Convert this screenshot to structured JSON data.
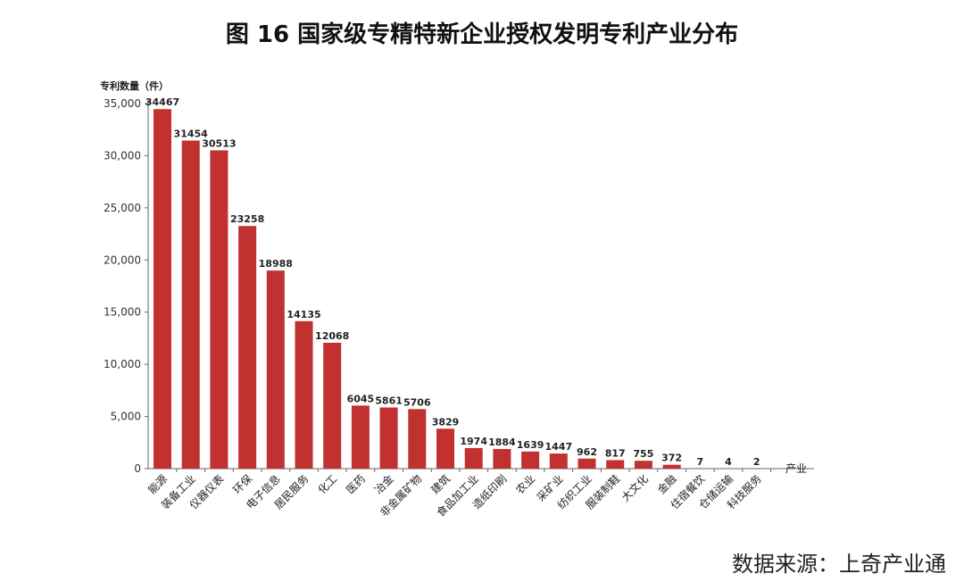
{
  "title": "图 16  国家级专精特新企业授权发明专利产业分布",
  "source": "数据来源：上奇产业通",
  "chart_data": {
    "type": "bar",
    "title": "图 16  国家级专精特新企业授权发明专利产业分布",
    "ylabel": "专利数量（件）",
    "xlabel": "产业",
    "ylim": [
      0,
      35000
    ],
    "yticks": [
      "0",
      "5,000",
      "10,000",
      "15,000",
      "20,000",
      "25,000",
      "30,000",
      "35,000"
    ],
    "grid": false,
    "bar_color": "#c0312f",
    "categories": [
      "能源",
      "装备工业",
      "仪器仪表",
      "环保",
      "电子信息",
      "居民服务",
      "化工",
      "医药",
      "冶金",
      "非金属矿物",
      "建筑",
      "食品加工业",
      "造纸印刷",
      "农业",
      "采矿业",
      "纺织工业",
      "服装制鞋",
      "大文化",
      "金融",
      "住宿餐饮",
      "仓储运输",
      "科技服务"
    ],
    "values": [
      34467,
      31454,
      30513,
      23258,
      18988,
      14135,
      12068,
      6045,
      5861,
      5706,
      3829,
      1974,
      1884,
      1639,
      1447,
      962,
      817,
      755,
      372,
      7,
      4,
      2
    ]
  }
}
